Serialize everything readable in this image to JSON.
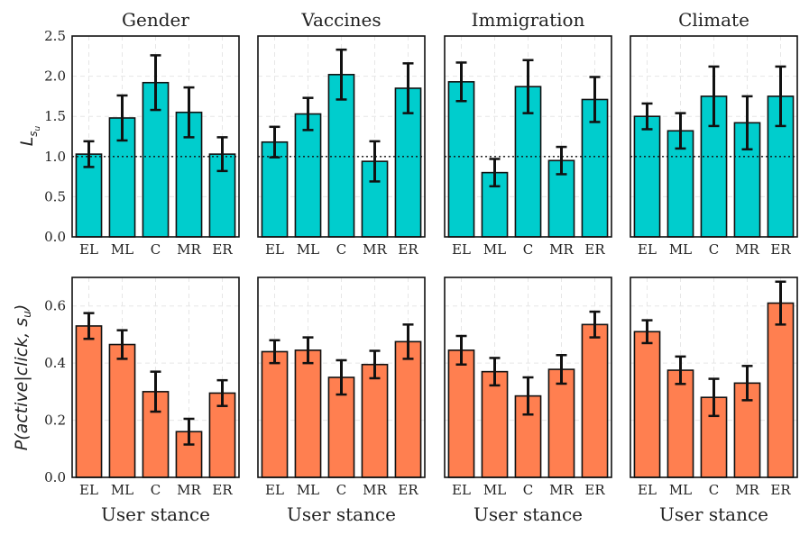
{
  "chart_data": {
    "type": "bar",
    "layout": "2x4 grid of bar charts",
    "panels": [
      "Gender",
      "Vaccines",
      "Immigration",
      "Climate"
    ],
    "categories": [
      "EL",
      "ML",
      "C",
      "MR",
      "ER"
    ],
    "xlabel": "User stance",
    "rows": [
      {
        "ylabel_main": "L",
        "ylabel_sub1": "s",
        "ylabel_sub2": "u",
        "color": "#00CDCD",
        "ylim": [
          0,
          2.5
        ],
        "yticks": [
          "0.0",
          "0.5",
          "1.0",
          "1.5",
          "2.0",
          "2.5"
        ],
        "reference_line": 1.0,
        "series": [
          {
            "panel": "Gender",
            "values": [
              1.03,
              1.48,
              1.92,
              1.55,
              1.03
            ],
            "err": [
              0.16,
              0.28,
              0.34,
              0.31,
              0.21
            ]
          },
          {
            "panel": "Vaccines",
            "values": [
              1.18,
              1.53,
              2.02,
              0.94,
              1.85
            ],
            "err": [
              0.19,
              0.2,
              0.31,
              0.25,
              0.31
            ]
          },
          {
            "panel": "Immigration",
            "values": [
              1.93,
              0.8,
              1.87,
              0.95,
              1.71
            ],
            "err": [
              0.24,
              0.17,
              0.33,
              0.17,
              0.28
            ]
          },
          {
            "panel": "Climate",
            "values": [
              1.5,
              1.32,
              1.75,
              1.42,
              1.75
            ],
            "err": [
              0.16,
              0.22,
              0.37,
              0.33,
              0.37
            ]
          }
        ]
      },
      {
        "ylabel": "P(active|click, s_u)",
        "ylabel_main": "P(active|click, s",
        "ylabel_sub": "u",
        "ylabel_close": ")",
        "color": "#FF7F50",
        "ylim": [
          0,
          0.7
        ],
        "yticks": [
          "0.0",
          "0.2",
          "0.4",
          "0.6"
        ],
        "series": [
          {
            "panel": "Gender",
            "values": [
              0.53,
              0.465,
              0.3,
              0.16,
              0.295
            ],
            "err": [
              0.045,
              0.05,
              0.07,
              0.045,
              0.045
            ]
          },
          {
            "panel": "Vaccines",
            "values": [
              0.44,
              0.445,
              0.35,
              0.395,
              0.475
            ],
            "err": [
              0.04,
              0.045,
              0.06,
              0.048,
              0.06
            ]
          },
          {
            "panel": "Immigration",
            "values": [
              0.445,
              0.37,
              0.285,
              0.378,
              0.535
            ],
            "err": [
              0.05,
              0.048,
              0.065,
              0.05,
              0.045
            ]
          },
          {
            "panel": "Climate",
            "values": [
              0.51,
              0.375,
              0.28,
              0.33,
              0.61
            ],
            "err": [
              0.04,
              0.048,
              0.065,
              0.06,
              0.075
            ]
          }
        ]
      }
    ]
  }
}
